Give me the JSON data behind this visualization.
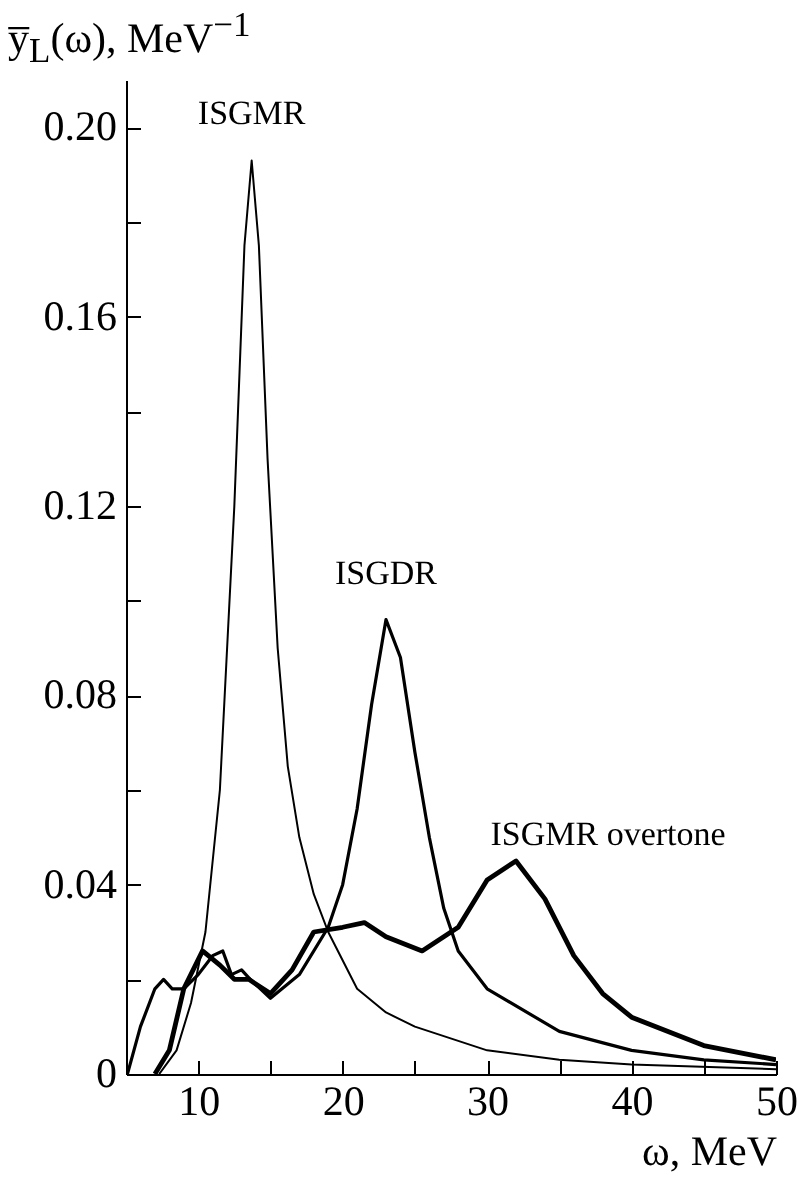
{
  "chart_data": {
    "type": "line",
    "xlabel": "ω, MeV",
    "ylabel": "y̅$_{L}$(ω), MeV$^{−1}$",
    "xlim": [
      5,
      50
    ],
    "ylim": [
      0,
      0.21
    ],
    "xticks": [
      10,
      {
        "value": 15,
        "label": null
      },
      20,
      {
        "value": 25,
        "label": null
      },
      30,
      {
        "value": 35,
        "label": null
      },
      40,
      {
        "value": 45,
        "label": null
      },
      50
    ],
    "yticks": [
      0,
      {
        "value": 0.02,
        "label": null
      },
      0.04,
      {
        "value": 0.06,
        "label": null
      },
      0.08,
      {
        "value": 0.1,
        "label": null
      },
      0.12,
      {
        "value": 0.14,
        "label": null
      },
      0.16,
      {
        "value": 0.18,
        "label": null
      },
      {
        "value": 0.2,
        "label": "0.20"
      }
    ],
    "grid": false,
    "marker": "none",
    "line_style": "solid",
    "series": [
      {
        "name": "ISGMR",
        "color": "#000000",
        "x": [
          7.3,
          8.5,
          9.5,
          10.5,
          11.5,
          12.5,
          13.2,
          13.7,
          14.2,
          14.8,
          15.5,
          16.2,
          17,
          18,
          19,
          21,
          23,
          25,
          30,
          35,
          40,
          50
        ],
        "values": [
          0,
          0.005,
          0.015,
          0.03,
          0.06,
          0.12,
          0.175,
          0.193,
          0.175,
          0.13,
          0.09,
          0.065,
          0.05,
          0.038,
          0.03,
          0.018,
          0.013,
          0.01,
          0.005,
          0.003,
          0.002,
          0.001
        ]
      },
      {
        "name": "ISGDR",
        "color": "#000000",
        "x": [
          5.1,
          6,
          7,
          7.6,
          8.2,
          9,
          10,
          11,
          11.7,
          12.3,
          13,
          13.6,
          15,
          17,
          19,
          20,
          21,
          22,
          23,
          24,
          25,
          26,
          27,
          28,
          30,
          35,
          40,
          45,
          50
        ],
        "values": [
          0,
          0.01,
          0.018,
          0.02,
          0.018,
          0.018,
          0.021,
          0.025,
          0.026,
          0.021,
          0.022,
          0.02,
          0.016,
          0.021,
          0.031,
          0.04,
          0.056,
          0.078,
          0.096,
          0.088,
          0.068,
          0.05,
          0.035,
          0.026,
          0.018,
          0.009,
          0.005,
          0.003,
          0.002
        ]
      },
      {
        "name": "ISGMR overtone",
        "color": "#000000",
        "x": [
          7,
          8,
          9,
          10.3,
          11.5,
          12.5,
          13.5,
          15,
          16.5,
          18,
          20,
          21.5,
          23,
          25.5,
          28,
          30,
          32,
          34,
          36,
          38,
          40,
          45,
          50
        ],
        "values": [
          0,
          0.005,
          0.018,
          0.026,
          0.023,
          0.02,
          0.02,
          0.017,
          0.022,
          0.03,
          0.031,
          0.032,
          0.029,
          0.026,
          0.031,
          0.041,
          0.045,
          0.037,
          0.025,
          0.017,
          0.012,
          0.006,
          0.003
        ]
      }
    ]
  }
}
